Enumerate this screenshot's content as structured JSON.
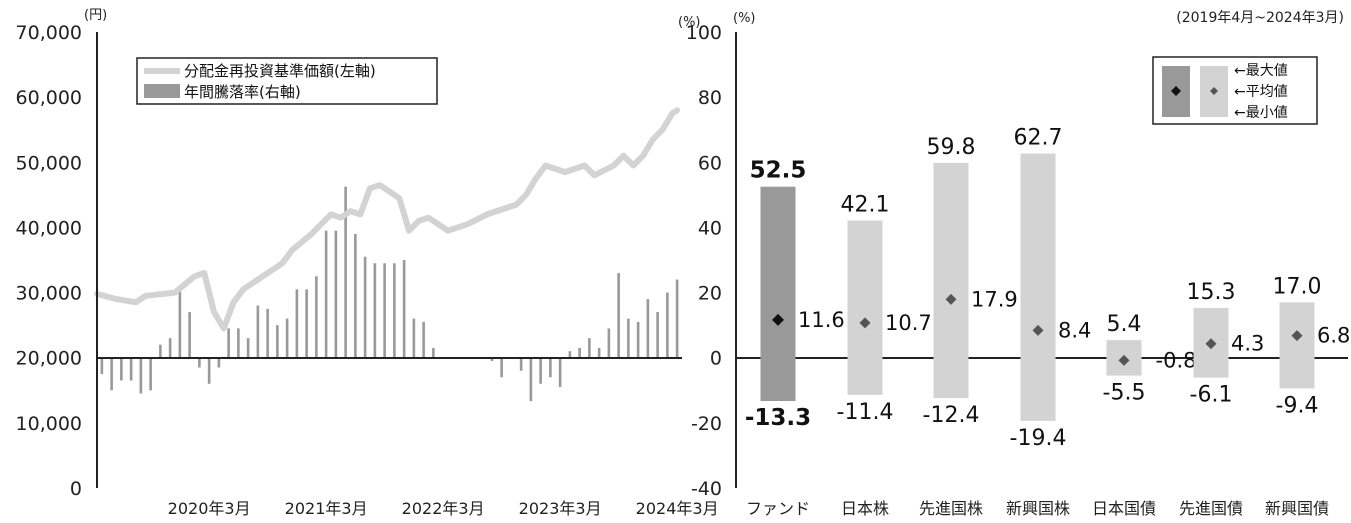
{
  "chart_data": [
    {
      "type": "line+bar",
      "title": "",
      "left_axis_unit": "(円)",
      "right_axis_unit": "(%)",
      "left_ticks": [
        "70,000",
        "60,000",
        "50,000",
        "40,000",
        "30,000",
        "20,000",
        "10,000",
        "0"
      ],
      "right_ticks": [
        "100",
        "80",
        "60",
        "40",
        "20",
        "0",
        "-20",
        "-40"
      ],
      "left_ylim": [
        0,
        70000
      ],
      "right_ylim": [
        -40,
        100
      ],
      "x_ticks": [
        "2020年3月",
        "2021年3月",
        "2022年3月",
        "2023年3月",
        "2024年3月"
      ],
      "x_range": [
        "2019-04",
        "2024-03"
      ],
      "legend": {
        "line_label": "分配金再投資基準価額(左軸)",
        "bar_label": "年間騰落率(右軸)"
      },
      "line_series": {
        "name": "分配金再投資基準価額(左軸)",
        "axis": "left",
        "color": "#d3d3d3",
        "x": [
          0,
          2,
          4,
          5,
          8,
          10,
          11,
          12,
          13,
          14,
          15,
          17,
          19,
          20,
          22,
          24,
          25,
          26,
          27,
          28,
          29,
          31,
          32,
          33,
          34,
          35,
          36,
          38,
          40,
          42,
          43,
          44,
          45,
          46,
          48,
          50,
          51,
          53,
          54,
          55,
          56,
          57,
          58,
          59,
          59.5
        ],
        "values": [
          29800,
          29000,
          28500,
          29500,
          30000,
          32500,
          33000,
          27000,
          24500,
          28500,
          30500,
          32500,
          34500,
          36500,
          39000,
          42000,
          41500,
          42500,
          42000,
          46000,
          46500,
          44500,
          39500,
          41000,
          41500,
          40500,
          39500,
          40500,
          42000,
          43000,
          43500,
          45000,
          47500,
          49500,
          48500,
          49500,
          48000,
          49500,
          51000,
          49500,
          51000,
          53500,
          55000,
          57500,
          58000
        ]
      },
      "bar_series": {
        "name": "年間騰落率(右軸)",
        "axis": "right",
        "color": "#999999",
        "x": [
          0.5,
          1.5,
          2.5,
          3.5,
          4.5,
          5.5,
          6.5,
          7.5,
          8.5,
          9.5,
          10.5,
          11.5,
          12.5,
          13.5,
          14.5,
          15.5,
          16.5,
          17.5,
          18.5,
          19.5,
          20.5,
          21.5,
          22.5,
          23.5,
          24.5,
          25.5,
          26.5,
          27.5,
          28.5,
          29.5,
          30.5,
          31.5,
          32.5,
          33.5,
          34.5,
          35.5,
          36.5,
          37.5,
          38.5,
          39.5,
          40.5,
          41.5,
          42.5,
          43.5,
          44.5,
          45.5,
          46.5,
          47.5,
          48.5,
          49.5,
          50.5,
          51.5,
          52.5,
          53.5,
          54.5,
          55.5,
          56.5,
          57.5,
          58.5,
          59.5
        ],
        "values": [
          -5,
          -10,
          -7,
          -7,
          -11,
          -10,
          4,
          6,
          22,
          14,
          -3,
          -8,
          -3,
          9,
          9,
          6,
          16,
          15,
          10,
          12,
          21,
          21,
          25,
          39,
          39,
          52.5,
          38,
          31,
          29,
          29,
          29,
          30,
          12,
          11,
          3,
          0,
          0,
          0,
          0,
          0,
          -1,
          -6,
          0,
          -4,
          -13.3,
          -8,
          -6,
          -9,
          2,
          3,
          6,
          3,
          9,
          26,
          12,
          11,
          18,
          14,
          20,
          24
        ]
      }
    },
    {
      "type": "range-bar",
      "title": "",
      "period_label": "(2019年4月~2024年3月)",
      "y_unit": "(%)",
      "ylim": [
        -40,
        100
      ],
      "y_ticks": [
        "100",
        "80",
        "60",
        "40",
        "20",
        "0",
        "-20",
        "-40"
      ],
      "categories": [
        "ファンド",
        "日本株",
        "先進国株",
        "新興国株",
        "日本国債",
        "先進国債",
        "新興国債"
      ],
      "series": [
        {
          "name": "最大値",
          "values": [
            52.5,
            42.1,
            59.8,
            62.7,
            5.4,
            15.3,
            17.0
          ],
          "labels": [
            "52.5",
            "42.1",
            "59.8",
            "62.7",
            "5.4",
            "15.3",
            "17.0"
          ]
        },
        {
          "name": "平均値",
          "values": [
            11.6,
            10.7,
            17.9,
            8.4,
            -0.8,
            4.3,
            6.8
          ],
          "labels": [
            "11.6",
            "10.7",
            "17.9",
            "8.4",
            "-0.8",
            "4.3",
            "6.8"
          ]
        },
        {
          "name": "最小値",
          "values": [
            -13.3,
            -11.4,
            -12.4,
            -19.4,
            -5.5,
            -6.1,
            -9.4
          ],
          "labels": [
            "-13.3",
            "-11.4",
            "-12.4",
            "-19.4",
            "-5.5",
            "-6.1",
            "-9.4"
          ]
        }
      ],
      "colors": {
        "fund": "#999999",
        "assets": "#d3d3d3",
        "marker_fund": "#111111",
        "marker_assets": "#555555"
      },
      "legend": {
        "max": "←最大値",
        "avg": "←平均値",
        "min": "←最小値"
      }
    }
  ]
}
